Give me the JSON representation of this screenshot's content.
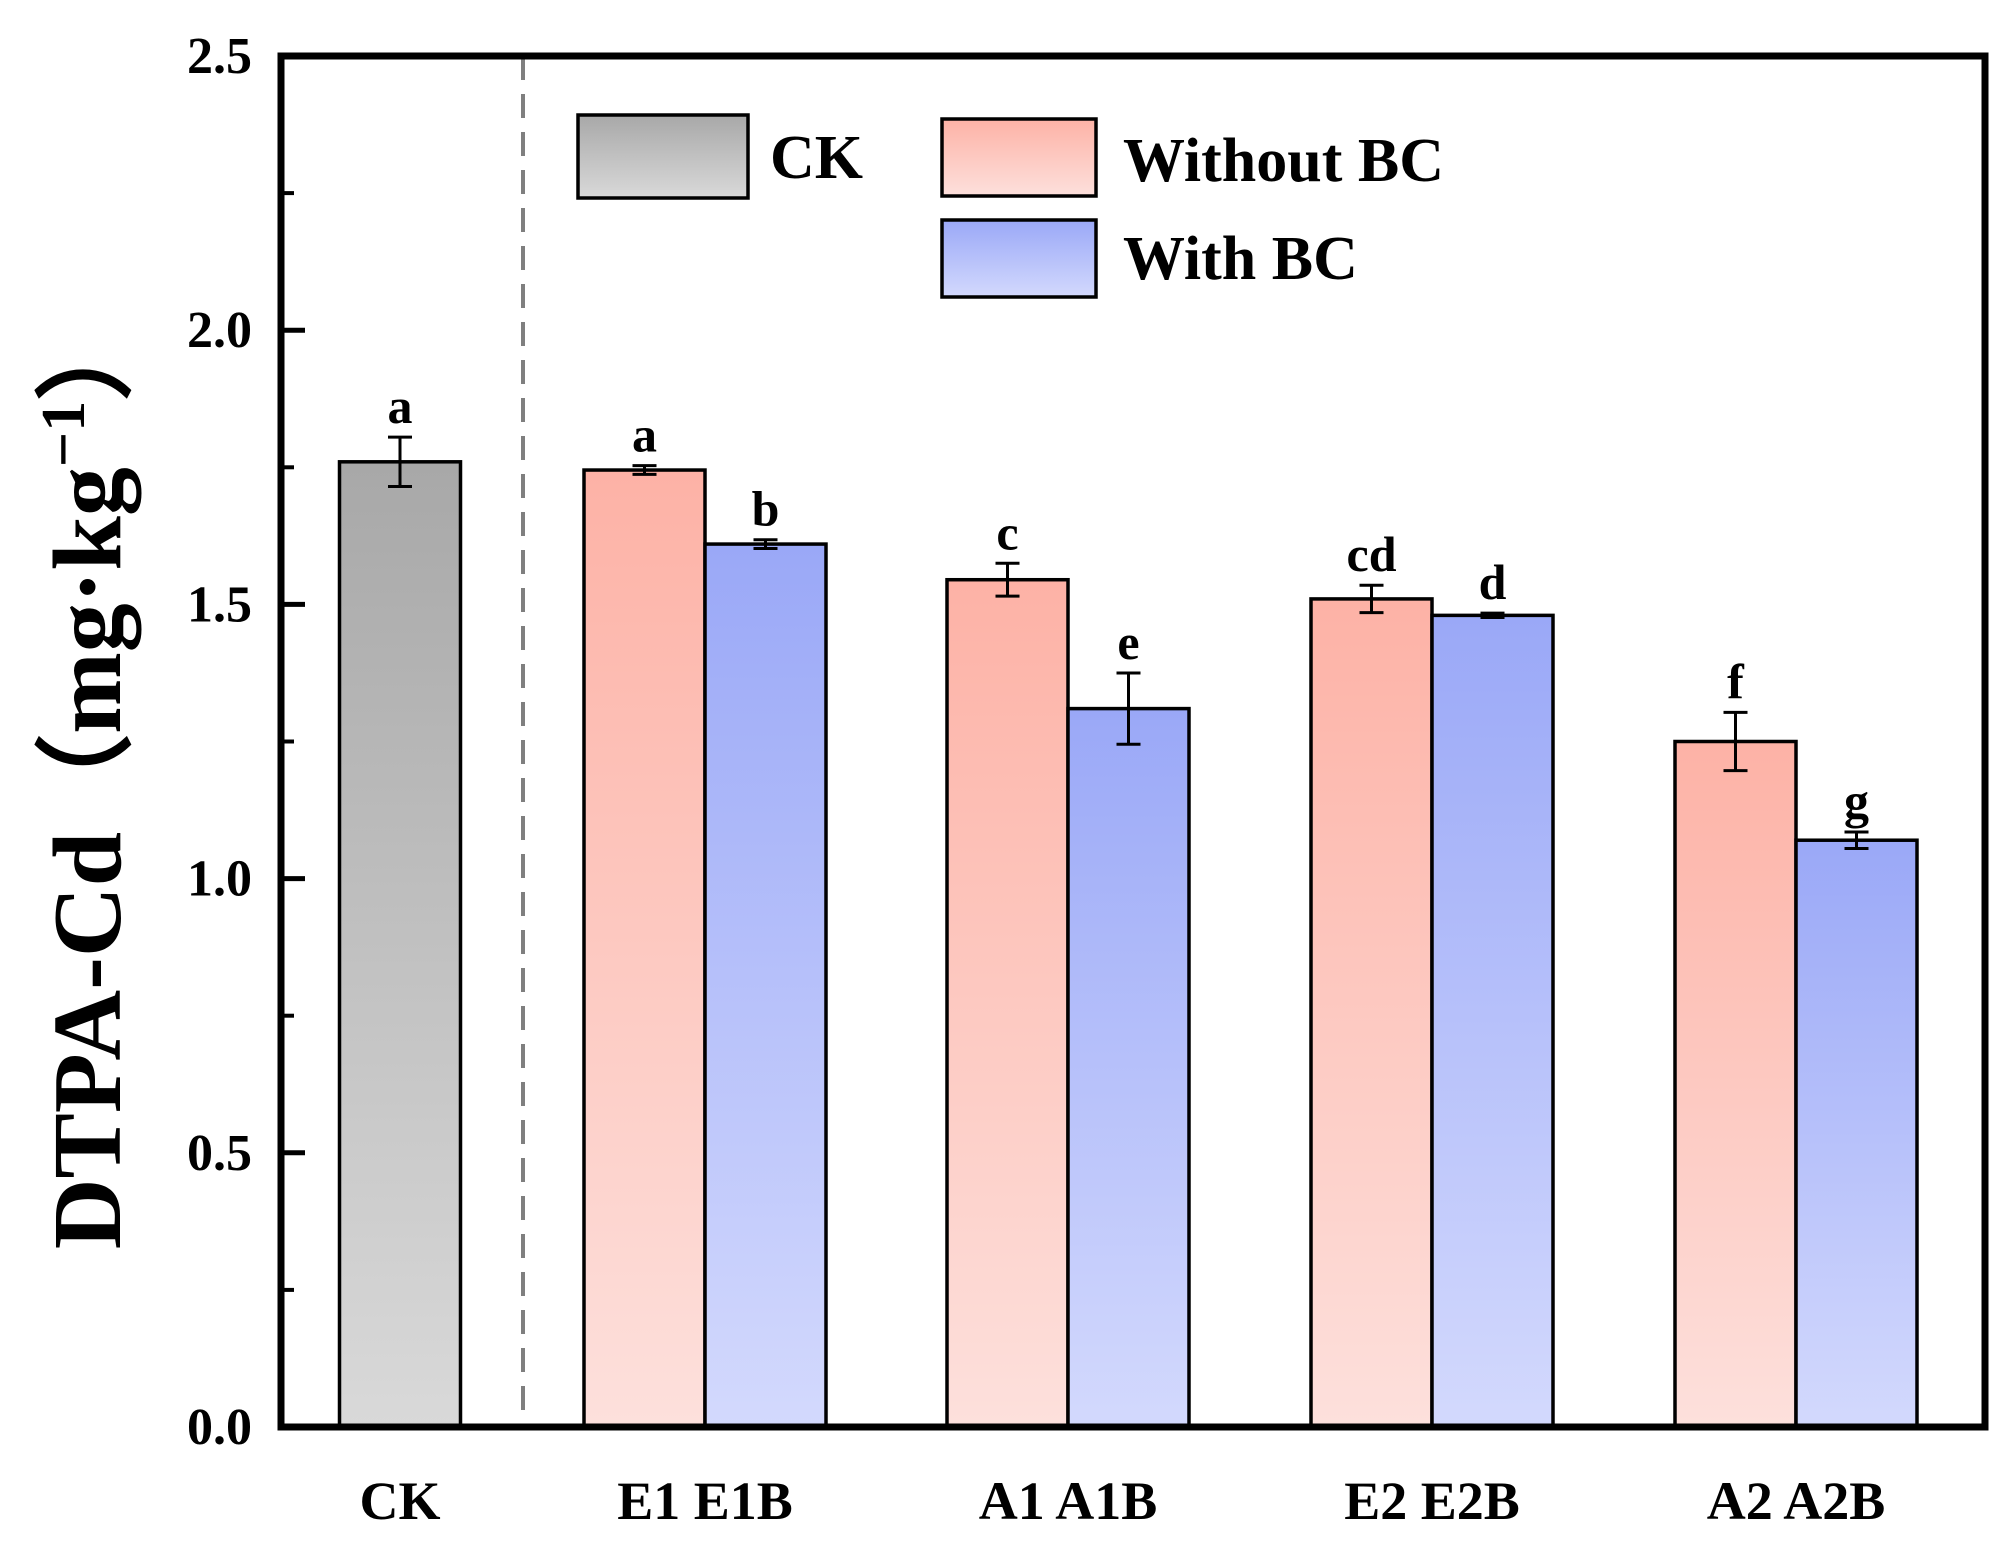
{
  "chart_data": {
    "type": "bar",
    "title": "",
    "xlabel": "",
    "ylabel": "DTPA-Cd（mg·kg",
    "ylabel_superscript": "−1",
    "ylabel_close": "）",
    "ylim": [
      0,
      2.5
    ],
    "yticks": [
      "0.0",
      "0.5",
      "1.0",
      "1.5",
      "2.0",
      "2.5"
    ],
    "grid": false,
    "legend_position": "top",
    "x_tick_labels": [
      "CK",
      "E1 E1B",
      "A1 A1B",
      "E2 E2B",
      "A2 A2B"
    ],
    "series": [
      {
        "name": "CK",
        "color_top": "#a8a8a8",
        "color_bottom": "#d9d9d9",
        "groups": [
          0
        ],
        "values": [
          1.76
        ],
        "errors": [
          0.045
        ],
        "letters": [
          "a"
        ]
      },
      {
        "name": "Without BC",
        "color_top": "#fdb2a6",
        "color_bottom": "#fde0dc",
        "groups": [
          1,
          2,
          3,
          4
        ],
        "values": [
          1.745,
          1.545,
          1.51,
          1.25
        ],
        "errors": [
          0.008,
          0.03,
          0.025,
          0.053
        ],
        "letters": [
          "a",
          "c",
          "cd",
          "f"
        ]
      },
      {
        "name": "With BC",
        "color_top": "#9aa8f7",
        "color_bottom": "#d3d9fd",
        "groups": [
          1,
          2,
          3,
          4
        ],
        "values": [
          1.61,
          1.31,
          1.48,
          1.07
        ],
        "errors": [
          0.008,
          0.065,
          0.004,
          0.015
        ],
        "letters": [
          "b",
          "e",
          "d",
          "g"
        ]
      }
    ],
    "legend": [
      "CK",
      "Without BC",
      "With BC"
    ]
  }
}
